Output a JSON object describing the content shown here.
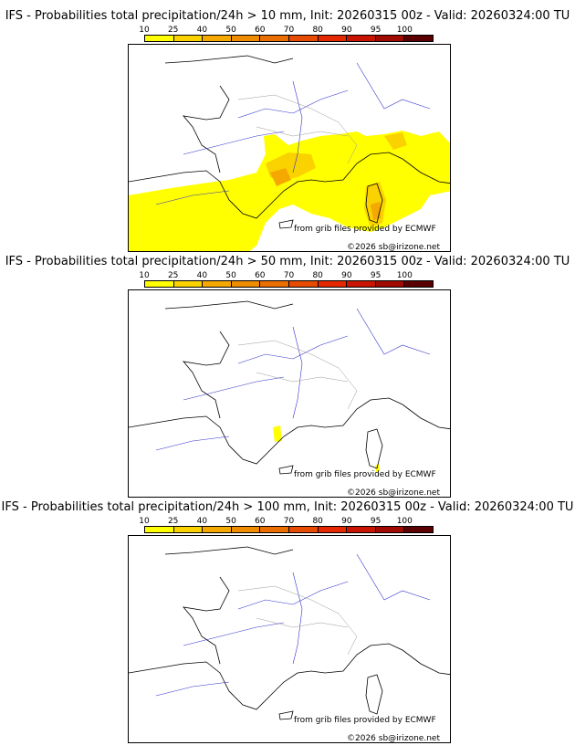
{
  "legend": {
    "labels": [
      "10",
      "25",
      "40",
      "50",
      "60",
      "70",
      "80",
      "90",
      "95",
      "100"
    ],
    "colors": [
      "#ffff00",
      "#fad200",
      "#f5a800",
      "#f08c00",
      "#eb6e00",
      "#e64b00",
      "#e62800",
      "#c81400",
      "#a00a00",
      "#5a0000"
    ]
  },
  "panels": [
    {
      "title": "IFS - Probabilities total precipitation/24h > 10 mm, Init: 20260315 00z - Valid: 20260324:00 TU"
    },
    {
      "title": "IFS - Probabilities total precipitation/24h > 50 mm, Init: 20260315 00z - Valid: 20260324:00 TU"
    },
    {
      "title": "IFS - Probabilities total precipitation/24h > 100 mm, Init: 20260315 00z - Valid: 20260324:00 TU"
    }
  ],
  "credits": {
    "source": "from grib files provided by ECMWF",
    "copyright": "©2026 sb@irizone.net"
  }
}
